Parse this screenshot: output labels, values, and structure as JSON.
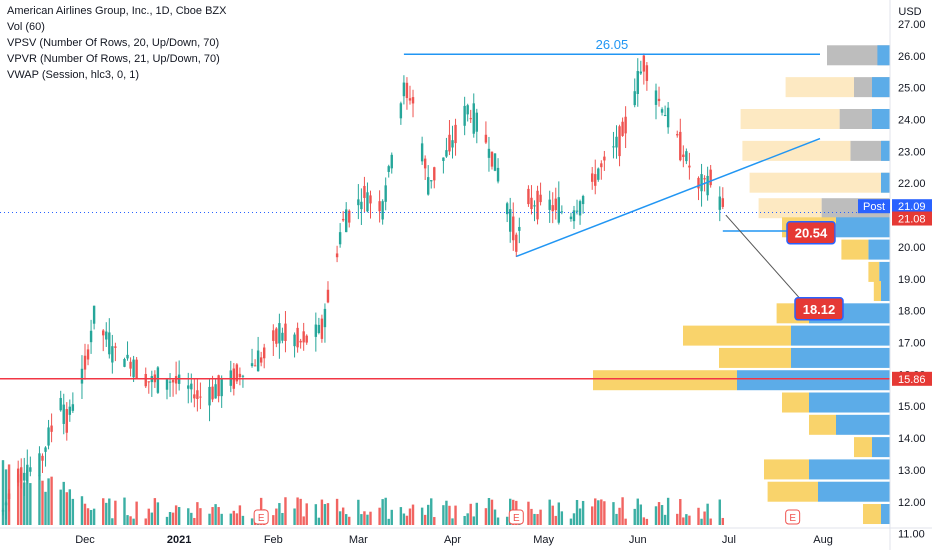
{
  "legend": {
    "title": "American Airlines Group, Inc., 1D, Cboe BZX",
    "lines": [
      "Vol (60)",
      "VPSV (Number Of Rows, 20, Up/Down, 70)",
      "VPVR (Number Of Rows, 21, Up/Down, 70)",
      "VWAP (Session, hlc3, 0, 1)"
    ]
  },
  "colors": {
    "up": "#26a69a",
    "down": "#ef5350",
    "vol_up": "#26a69a",
    "vol_down": "#ef5350",
    "profile_up": "#5cace8",
    "profile_down": "#f9d36b",
    "profile_up_session": "#bdbdbd",
    "profile_down_session": "#fde9c2",
    "trendline": "#2196f3",
    "support": "#f23645",
    "badge_red": "#e53935",
    "badge_blue": "#2962ff"
  },
  "chart_data": {
    "type": "candlestick",
    "title": "American Airlines Group, Inc., 1D, Cboe BZX",
    "currency": "USD",
    "y_ticks": [
      "27.00",
      "26.00",
      "25.00",
      "24.00",
      "23.00",
      "22.00",
      "21.00",
      "20.00",
      "19.00",
      "18.00",
      "17.00",
      "16.00",
      "15.00",
      "14.00",
      "13.00",
      "12.00",
      "11.00"
    ],
    "ylim": [
      10.8,
      27.5
    ],
    "x_labels": [
      "Dec",
      "2021",
      "Feb",
      "Mar",
      "Apr",
      "May",
      "Jun",
      "Jul",
      "Aug"
    ],
    "price_path": [
      {
        "date": "2020-11-04",
        "close": 11.7
      },
      {
        "date": "2020-11-09",
        "close": 12.9
      },
      {
        "date": "2020-11-16",
        "close": 13.1
      },
      {
        "date": "2020-11-23",
        "close": 15.2
      },
      {
        "date": "2020-11-25",
        "close": 14.5
      },
      {
        "date": "2020-12-01",
        "close": 16.2
      },
      {
        "date": "2020-12-04",
        "close": 17.8
      },
      {
        "date": "2020-12-10",
        "close": 16.8
      },
      {
        "date": "2020-12-16",
        "close": 16.4
      },
      {
        "date": "2020-12-22",
        "close": 15.8
      },
      {
        "date": "2020-12-31",
        "close": 15.8
      },
      {
        "date": "2021-01-08",
        "close": 15.3
      },
      {
        "date": "2021-01-15",
        "close": 15.6
      },
      {
        "date": "2021-01-22",
        "close": 16.1
      },
      {
        "date": "2021-01-28",
        "close": 16.5
      },
      {
        "date": "2021-02-03",
        "close": 17.3
      },
      {
        "date": "2021-02-10",
        "close": 17.0
      },
      {
        "date": "2021-02-17",
        "close": 17.4
      },
      {
        "date": "2021-02-24",
        "close": 20.8
      },
      {
        "date": "2021-03-03",
        "close": 21.6
      },
      {
        "date": "2021-03-09",
        "close": 21.3
      },
      {
        "date": "2021-03-16",
        "close": 24.9
      },
      {
        "date": "2021-03-19",
        "close": 24.6
      },
      {
        "date": "2021-03-24",
        "close": 22.0
      },
      {
        "date": "2021-03-30",
        "close": 22.9
      },
      {
        "date": "2021-04-06",
        "close": 24.3
      },
      {
        "date": "2021-04-12",
        "close": 23.4
      },
      {
        "date": "2021-04-16",
        "close": 22.3
      },
      {
        "date": "2021-04-22",
        "close": 20.2
      },
      {
        "date": "2021-04-26",
        "close": 21.4
      },
      {
        "date": "2021-05-03",
        "close": 21.3
      },
      {
        "date": "2021-05-10",
        "close": 21.0
      },
      {
        "date": "2021-05-14",
        "close": 21.5
      },
      {
        "date": "2021-05-20",
        "close": 22.5
      },
      {
        "date": "2021-05-27",
        "close": 23.5
      },
      {
        "date": "2021-06-03",
        "close": 25.8
      },
      {
        "date": "2021-06-07",
        "close": 24.8
      },
      {
        "date": "2021-06-14",
        "close": 23.4
      },
      {
        "date": "2021-06-21",
        "close": 21.9
      },
      {
        "date": "2021-06-25",
        "close": 22.1
      },
      {
        "date": "2021-06-30",
        "close": 21.08
      }
    ],
    "volume": [],
    "annotations": {
      "resistance": {
        "label": "26.05",
        "value": 26.05,
        "from": "2021-03-16",
        "to": "2021-07-31"
      },
      "support_line": {
        "value": 15.86,
        "label": "15.86"
      },
      "trendline": {
        "from": {
          "date": "2021-04-22",
          "value": 19.7
        },
        "to": {
          "date": "2021-07-31",
          "value": 23.4
        }
      },
      "target_short": {
        "value": 20.54,
        "label": "20.54",
        "from": "2021-06-29",
        "to": "2021-07-27"
      },
      "target_long": {
        "value": 18.12,
        "label": "18.12",
        "date": "2021-07-27"
      },
      "arrow": {
        "from": {
          "date": "2021-06-30",
          "value": 21.0
        },
        "to": {
          "date": "2021-07-27",
          "value": 18.1
        }
      }
    },
    "price_badges": [
      {
        "label": "Post",
        "value": "21.09",
        "price": 21.09,
        "style": "blue"
      },
      {
        "label": "",
        "value": "21.08",
        "price": 21.08,
        "style": "red"
      },
      {
        "label": "",
        "value": "15.86",
        "price": 15.86,
        "style": "red"
      }
    ],
    "earnings_markers": [
      "2021-01-28",
      "2021-04-22",
      "2021-07-22"
    ],
    "volume_profile_rows": [
      {
        "price": 26.0,
        "up": 0.07,
        "down": 0.0,
        "session_up": 0.35,
        "session_down": 0.0
      },
      {
        "price": 25.0,
        "up": 0.1,
        "down": 0.0,
        "session_up": 0.2,
        "session_down": 0.38
      },
      {
        "price": 24.0,
        "up": 0.1,
        "down": 0.0,
        "session_up": 0.28,
        "session_down": 0.55
      },
      {
        "price": 23.0,
        "up": 0.05,
        "down": 0.0,
        "session_up": 0.22,
        "session_down": 0.6
      },
      {
        "price": 22.0,
        "up": 0.05,
        "down": 0.0,
        "session_up": 0.0,
        "session_down": 0.78
      },
      {
        "price": 21.2,
        "up": 0.0,
        "down": 0.0,
        "session_up": 0.38,
        "session_down": 0.35
      },
      {
        "price": 20.6,
        "up": 0.3,
        "down": 0.3,
        "session_up": 0.0,
        "session_down": 0.0
      },
      {
        "price": 19.9,
        "up": 0.12,
        "down": 0.15,
        "session_up": 0.0,
        "session_down": 0.0
      },
      {
        "price": 19.2,
        "up": 0.06,
        "down": 0.06,
        "session_up": 0.0,
        "session_down": 0.0
      },
      {
        "price": 18.6,
        "up": 0.05,
        "down": 0.04,
        "session_up": 0.0,
        "session_down": 0.0
      },
      {
        "price": 17.9,
        "up": 0.45,
        "down": 0.18,
        "session_up": 0.0,
        "session_down": 0.0
      },
      {
        "price": 17.2,
        "up": 0.55,
        "down": 0.6,
        "session_up": 0.0,
        "session_down": 0.0
      },
      {
        "price": 16.5,
        "up": 0.55,
        "down": 0.4,
        "session_up": 0.0,
        "session_down": 0.0
      },
      {
        "price": 15.8,
        "up": 0.85,
        "down": 0.8,
        "session_up": 0.0,
        "session_down": 0.0
      },
      {
        "price": 15.1,
        "up": 0.45,
        "down": 0.15,
        "session_up": 0.0,
        "session_down": 0.0
      },
      {
        "price": 14.4,
        "up": 0.3,
        "down": 0.15,
        "session_up": 0.0,
        "session_down": 0.0
      },
      {
        "price": 13.7,
        "up": 0.1,
        "down": 0.1,
        "session_up": 0.0,
        "session_down": 0.0
      },
      {
        "price": 13.0,
        "up": 0.45,
        "down": 0.25,
        "session_up": 0.0,
        "session_down": 0.0
      },
      {
        "price": 12.3,
        "up": 0.4,
        "down": 0.28,
        "session_up": 0.0,
        "session_down": 0.0
      },
      {
        "price": 11.6,
        "up": 0.05,
        "down": 0.1,
        "session_up": 0.0,
        "session_down": 0.0
      }
    ]
  }
}
